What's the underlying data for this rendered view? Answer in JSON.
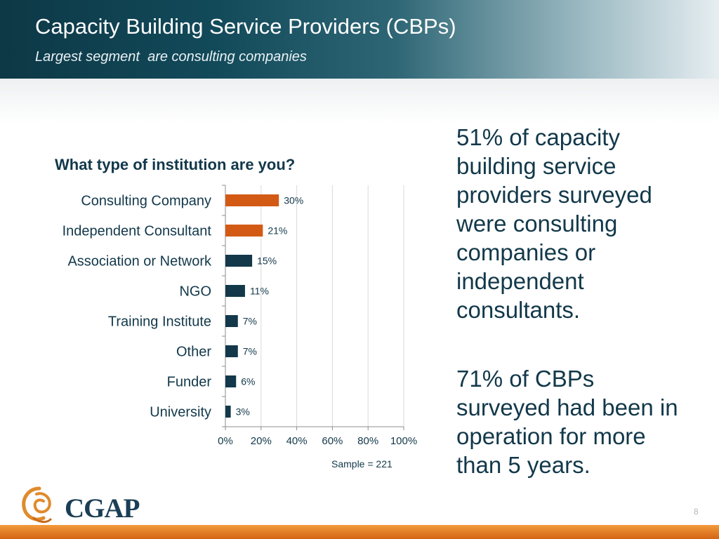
{
  "header": {
    "title": "Capacity Building Service Providers (CBPs)",
    "subtitle": "Largest segment  are consulting companies"
  },
  "chart": {
    "question": "What type of institution are you?",
    "sample_note": "Sample = 221"
  },
  "chart_data": {
    "type": "bar",
    "orientation": "horizontal",
    "categories": [
      "Consulting Company",
      "Independent Consultant",
      "Association or Network",
      "NGO",
      "Training Institute",
      "Other",
      "Funder",
      "University"
    ],
    "values": [
      30,
      21,
      15,
      11,
      7,
      7,
      6,
      3
    ],
    "data_labels": [
      "30%",
      "21%",
      "15%",
      "11%",
      "7%",
      "7%",
      "6%",
      "3%"
    ],
    "bar_colors": [
      "#d35a14",
      "#d35a14",
      "#12384a",
      "#12384a",
      "#12384a",
      "#12384a",
      "#12384a",
      "#12384a"
    ],
    "xlim": [
      0,
      100
    ],
    "xticks": [
      0,
      20,
      40,
      60,
      80,
      100
    ],
    "xtick_labels": [
      "0%",
      "20%",
      "40%",
      "60%",
      "80%",
      "100%"
    ],
    "grid": "vertical",
    "legend": "none"
  },
  "callouts": {
    "first": "51% of capacity building service providers surveyed were consulting companies or independent consultants.",
    "second": "71% of CBPs surveyed had been in operation for more than 5 years."
  },
  "logo": {
    "text": "CGAP",
    "icon": "cgap-swirl-icon"
  },
  "footer": {
    "page_number": "8"
  },
  "colors": {
    "accent_orange": "#d35a14",
    "navy": "#12384a",
    "header_dark": "#0d3846"
  }
}
